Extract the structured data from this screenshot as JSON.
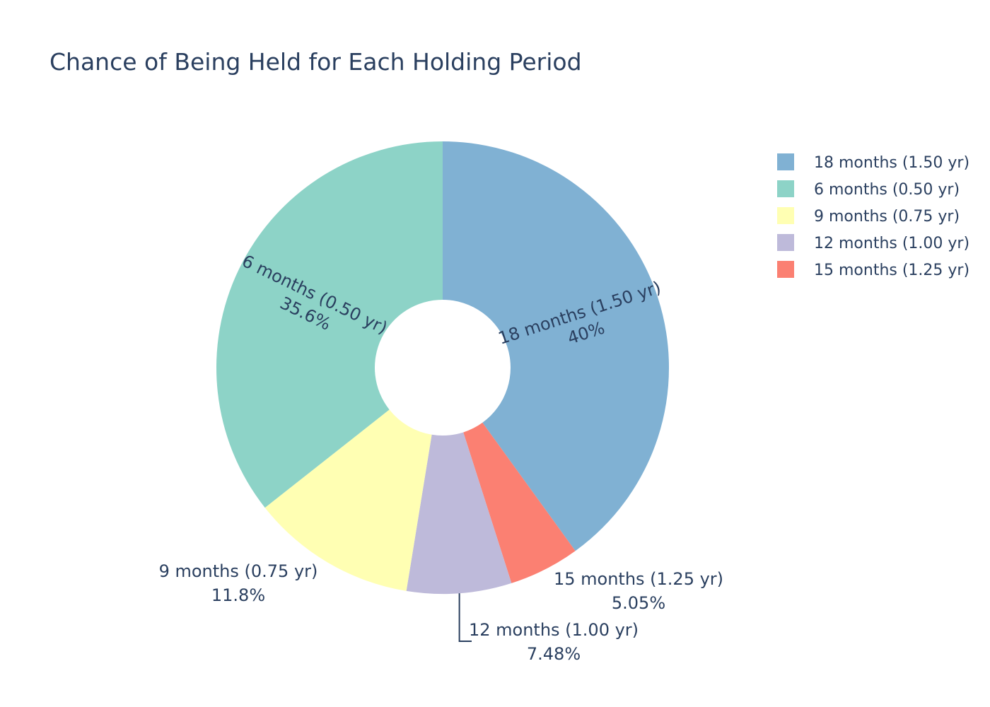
{
  "chart_data": {
    "type": "pie",
    "title": "Chance of Being Held for Each Holding Period",
    "hole": 0.3,
    "legend_position": "right",
    "slices": [
      {
        "label": "18 months (1.50 yr)",
        "value": 40.0,
        "percent_text": "40%",
        "color": "#80b1d3",
        "text_position": "inside"
      },
      {
        "label": "15 months (1.25 yr)",
        "value": 5.05,
        "percent_text": "5.05%",
        "color": "#fb8072",
        "text_position": "outside"
      },
      {
        "label": "12 months (1.00 yr)",
        "value": 7.48,
        "percent_text": "7.48%",
        "color": "#bebada",
        "text_position": "outside"
      },
      {
        "label": "9 months (0.75 yr)",
        "value": 11.8,
        "percent_text": "11.8%",
        "color": "#ffffb3",
        "text_position": "outside"
      },
      {
        "label": "6 months (0.50 yr)",
        "value": 35.6,
        "percent_text": "35.6%",
        "color": "#8dd3c7",
        "text_position": "inside"
      }
    ],
    "legend_order": [
      "18 months (1.50 yr)",
      "6 months (0.50 yr)",
      "9 months (0.75 yr)",
      "12 months (1.00 yr)",
      "15 months (1.25 yr)"
    ]
  }
}
